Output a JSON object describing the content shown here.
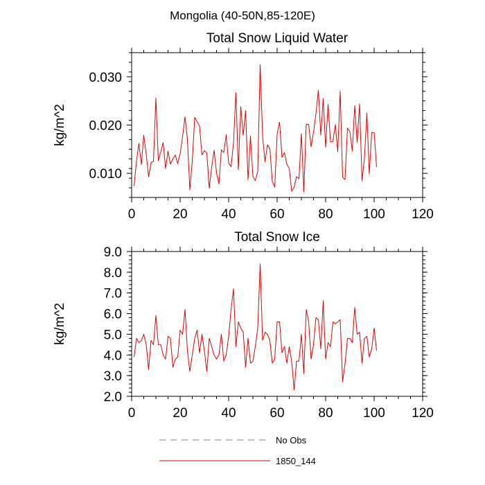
{
  "page_title": "Mongolia (40-50N,85-120E)",
  "legend": [
    {
      "label": "No Obs",
      "color": "#7b7fa8",
      "style": "dashed"
    },
    {
      "label": "1850_144",
      "color": "#e00000",
      "style": "solid"
    }
  ],
  "chart_data": [
    {
      "type": "line",
      "title": "Total Snow Liquid Water",
      "xlabel": "",
      "ylabel": "kg/m^2",
      "xlim": [
        0,
        120
      ],
      "ylim": [
        0.005,
        0.035
      ],
      "xticks": [
        0,
        20,
        40,
        60,
        80,
        100,
        120
      ],
      "xtick_labels": [
        "0",
        "20",
        "40",
        "60",
        "80",
        "100",
        "120"
      ],
      "yticks": [
        0.01,
        0.02,
        0.03
      ],
      "ytick_labels": [
        "0.010",
        "0.020",
        "0.030"
      ],
      "grid": false,
      "series": [
        {
          "name": "1850_144",
          "color": "#e00000",
          "x": [
            1,
            2,
            3,
            4,
            5,
            6,
            7,
            8,
            9,
            10,
            11,
            12,
            13,
            14,
            15,
            16,
            17,
            18,
            19,
            20,
            21,
            22,
            23,
            24,
            25,
            26,
            27,
            28,
            29,
            30,
            31,
            32,
            33,
            34,
            35,
            36,
            37,
            38,
            39,
            40,
            41,
            42,
            43,
            44,
            45,
            46,
            47,
            48,
            49,
            50,
            51,
            52,
            53,
            54,
            55,
            56,
            57,
            58,
            59,
            60,
            61,
            62,
            63,
            64,
            65,
            66,
            67,
            68,
            69,
            70,
            71,
            72,
            73,
            74,
            75,
            76,
            77,
            78,
            79,
            80,
            81,
            82,
            83,
            84,
            85,
            86,
            87,
            88,
            89,
            90,
            91,
            92,
            93,
            94,
            95,
            96,
            97,
            98,
            99,
            100,
            101
          ],
          "y": [
            0.0074,
            0.0125,
            0.0162,
            0.0118,
            0.0179,
            0.014,
            0.0093,
            0.0122,
            0.0125,
            0.0256,
            0.0126,
            0.0144,
            0.0164,
            0.011,
            0.0146,
            0.0119,
            0.013,
            0.0138,
            0.012,
            0.0141,
            0.0176,
            0.0217,
            0.017,
            0.0066,
            0.0125,
            0.0216,
            0.0207,
            0.0198,
            0.0138,
            0.0147,
            0.0142,
            0.0069,
            0.0112,
            0.0148,
            0.0101,
            0.0078,
            0.0149,
            0.0143,
            0.018,
            0.0121,
            0.0114,
            0.0163,
            0.0267,
            0.0107,
            0.0238,
            0.0179,
            0.023,
            0.0087,
            0.0177,
            0.0094,
            0.0085,
            0.0104,
            0.0325,
            0.0177,
            0.0124,
            0.0159,
            0.0151,
            0.0083,
            0.0072,
            0.0182,
            0.0206,
            0.0133,
            0.0143,
            0.0119,
            0.011,
            0.0063,
            0.0071,
            0.0093,
            0.0089,
            0.0182,
            0.0062,
            0.0202,
            0.0201,
            0.0155,
            0.0185,
            0.0224,
            0.0272,
            0.0179,
            0.0255,
            0.0154,
            0.0243,
            0.0165,
            0.0166,
            0.0201,
            0.0145,
            0.027,
            0.0092,
            0.0087,
            0.0194,
            0.0186,
            0.0146,
            0.024,
            0.0164,
            0.0244,
            0.0085,
            0.0131,
            0.0225,
            0.0099,
            0.0185,
            0.0184,
            0.0113
          ]
        }
      ]
    },
    {
      "type": "line",
      "title": "Total Snow Ice",
      "xlabel": "",
      "ylabel": "kg/m^2",
      "xlim": [
        0,
        120
      ],
      "ylim": [
        2.0,
        9.0
      ],
      "xticks": [
        0,
        20,
        40,
        60,
        80,
        100,
        120
      ],
      "xtick_labels": [
        "0",
        "20",
        "40",
        "60",
        "80",
        "100",
        "120"
      ],
      "yticks": [
        2.0,
        3.0,
        4.0,
        5.0,
        6.0,
        7.0,
        8.0,
        9.0
      ],
      "ytick_labels": [
        "2.0",
        "3.0",
        "4.0",
        "5.0",
        "6.0",
        "7.0",
        "8.0",
        "9.0"
      ],
      "grid": false,
      "series": [
        {
          "name": "1850_144",
          "color": "#e00000",
          "x": [
            1,
            2,
            3,
            4,
            5,
            6,
            7,
            8,
            9,
            10,
            11,
            12,
            13,
            14,
            15,
            16,
            17,
            18,
            19,
            20,
            21,
            22,
            23,
            24,
            25,
            26,
            27,
            28,
            29,
            30,
            31,
            32,
            33,
            34,
            35,
            36,
            37,
            38,
            39,
            40,
            41,
            42,
            43,
            44,
            45,
            46,
            47,
            48,
            49,
            50,
            51,
            52,
            53,
            54,
            55,
            56,
            57,
            58,
            59,
            60,
            61,
            62,
            63,
            64,
            65,
            66,
            67,
            68,
            69,
            70,
            71,
            72,
            73,
            74,
            75,
            76,
            77,
            78,
            79,
            80,
            81,
            82,
            83,
            84,
            85,
            86,
            87,
            88,
            89,
            90,
            91,
            92,
            93,
            94,
            95,
            96,
            97,
            98,
            99,
            100,
            101
          ],
          "y": [
            3.9,
            4.8,
            4.6,
            4.7,
            5.0,
            4.5,
            3.3,
            4.7,
            4.5,
            5.9,
            4.5,
            4.5,
            4.0,
            3.8,
            4.9,
            4.8,
            3.4,
            3.8,
            3.9,
            5.2,
            5.0,
            6.2,
            4.2,
            3.2,
            4.0,
            4.8,
            5.2,
            4.1,
            5.0,
            4.2,
            3.2,
            4.8,
            4.4,
            4.0,
            3.8,
            4.0,
            5.0,
            3.7,
            4.0,
            4.9,
            6.2,
            7.2,
            4.4,
            5.6,
            5.3,
            5.1,
            3.4,
            4.8,
            3.6,
            3.7,
            4.4,
            5.3,
            8.4,
            4.7,
            5.1,
            5.0,
            4.7,
            3.6,
            3.8,
            5.6,
            5.6,
            4.1,
            4.4,
            3.6,
            4.4,
            3.7,
            2.3,
            3.7,
            3.7,
            5.0,
            3.1,
            6.2,
            5.6,
            3.8,
            4.5,
            5.8,
            5.7,
            4.3,
            6.6,
            3.8,
            4.6,
            4.4,
            5.6,
            5.5,
            5.6,
            5.7,
            2.7,
            3.6,
            4.8,
            4.8,
            4.6,
            6.3,
            5.0,
            5.1,
            3.6,
            4.8,
            4.9,
            3.9,
            4.3,
            5.3,
            4.2
          ]
        }
      ]
    }
  ]
}
